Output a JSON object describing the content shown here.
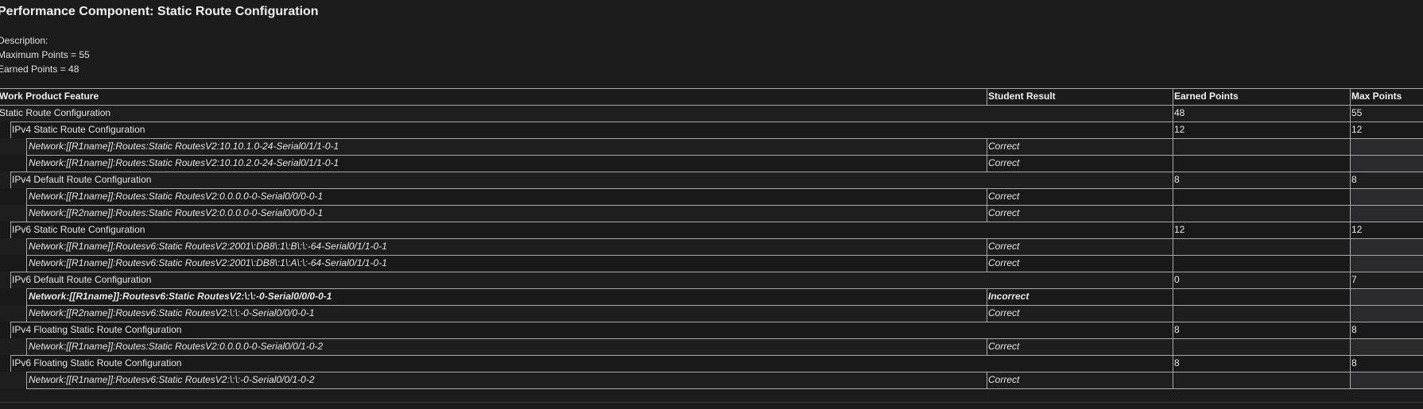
{
  "header": {
    "title": "Performance Component: Static Route Configuration",
    "description_label": "Description:",
    "max_points_text": "Maximum Points = 55",
    "earned_points_text": "Earned Points = 48"
  },
  "table": {
    "columns": [
      "Work Product Feature",
      "Student Result",
      "Earned Points",
      "Max Points"
    ],
    "rows": [
      {
        "level": 0,
        "feature": "Static Route Configuration",
        "result": "",
        "earned": "48",
        "max": "55",
        "style": "normal"
      },
      {
        "level": 1,
        "feature": "IPv4 Static Route Configuration",
        "result": "",
        "earned": "12",
        "max": "12",
        "style": "normal"
      },
      {
        "level": 2,
        "feature": "Network:[[R1name]]:Routes:Static RoutesV2:10.10.1.0-24-Serial0/1/1-0-1",
        "result": "Correct",
        "earned": "",
        "max": "",
        "style": "italic"
      },
      {
        "level": 2,
        "feature": "Network:[[R1name]]:Routes:Static RoutesV2:10.10.2.0-24-Serial0/1/1-0-1",
        "result": "Correct",
        "earned": "",
        "max": "",
        "style": "italic"
      },
      {
        "level": 1,
        "feature": "IPv4 Default Route Configuration",
        "result": "",
        "earned": "8",
        "max": "8",
        "style": "normal"
      },
      {
        "level": 2,
        "feature": "Network:[[R1name]]:Routes:Static RoutesV2:0.0.0.0-0-Serial0/0/0-0-1",
        "result": "Correct",
        "earned": "",
        "max": "",
        "style": "italic"
      },
      {
        "level": 2,
        "feature": "Network:[[R2name]]:Routes:Static RoutesV2:0.0.0.0-0-Serial0/0/0-0-1",
        "result": "Correct",
        "earned": "",
        "max": "",
        "style": "italic"
      },
      {
        "level": 1,
        "feature": "IPv6 Static Route Configuration",
        "result": "",
        "earned": "12",
        "max": "12",
        "style": "normal"
      },
      {
        "level": 2,
        "feature": "Network:[[R1name]]:Routesv6:Static RoutesV2:2001\\:DB8\\:1\\:B\\:\\:-64-Serial0/1/1-0-1",
        "result": "Correct",
        "earned": "",
        "max": "",
        "style": "italic"
      },
      {
        "level": 2,
        "feature": "Network:[[R1name]]:Routesv6:Static RoutesV2:2001\\:DB8\\:1\\:A\\:\\:-64-Serial0/1/1-0-1",
        "result": "Correct",
        "earned": "",
        "max": "",
        "style": "italic"
      },
      {
        "level": 1,
        "feature": "IPv6 Default Route Configuration",
        "result": "",
        "earned": "0",
        "max": "7",
        "style": "normal"
      },
      {
        "level": 2,
        "feature": "Network:[[R1name]]:Routesv6:Static RoutesV2:\\:\\:-0-Serial0/0/0-0-1",
        "result": "Incorrect",
        "earned": "",
        "max": "",
        "style": "bold-italic"
      },
      {
        "level": 2,
        "feature": "Network:[[R2name]]:Routesv6:Static RoutesV2:\\:\\:-0-Serial0/0/0-0-1",
        "result": "Correct",
        "earned": "",
        "max": "",
        "style": "italic"
      },
      {
        "level": 1,
        "feature": "IPv4 Floating Static Route Configuration",
        "result": "",
        "earned": "8",
        "max": "8",
        "style": "normal"
      },
      {
        "level": 2,
        "feature": "Network:[[R1name]]:Routes:Static RoutesV2:0.0.0.0-0-Serial0/0/1-0-2",
        "result": "Correct",
        "earned": "",
        "max": "",
        "style": "italic"
      },
      {
        "level": 1,
        "feature": "IPv6 Floating Static Route Configuration",
        "result": "",
        "earned": "8",
        "max": "8",
        "style": "normal"
      },
      {
        "level": 2,
        "feature": "Network:[[R1name]]:Routesv6:Static RoutesV2:\\:\\:-0-Serial0/0/1-0-2",
        "result": "Correct",
        "earned": "",
        "max": "",
        "style": "italic"
      }
    ]
  }
}
